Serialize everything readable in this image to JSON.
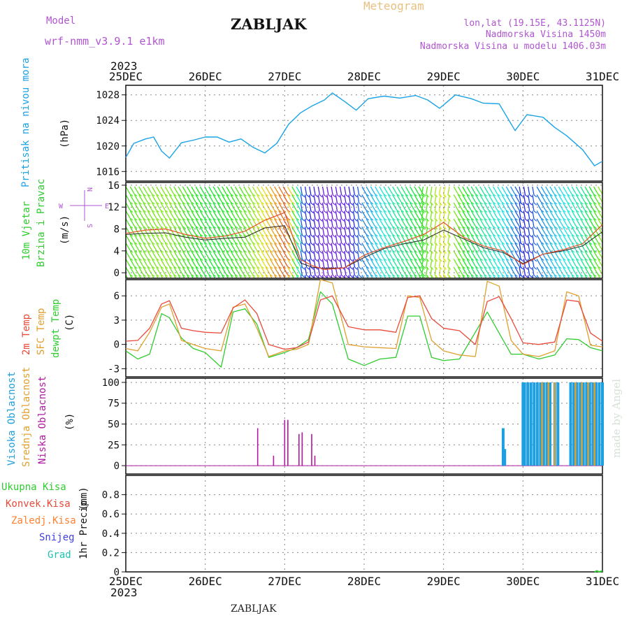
{
  "header": {
    "model_label": "Model",
    "model_name": "wrf-nmm_v3.9.1  e1km",
    "title": "ZABLJAK",
    "meteogram": "Meteogram",
    "lonlat": "lon,lat (19.15E, 43.1125N)",
    "elevation": "Nadmorska Visina 1450m",
    "model_elevation": "Nadmorska Visina u modelu 1406.03m",
    "watermark": "made by Angel",
    "footer_station": "ZABLJAK"
  },
  "colors": {
    "pressure": "#1aa3e6",
    "wind_mean": "#e8502a",
    "wind_gust": "#222222",
    "t2m": "#e84a3a",
    "tsfc": "#e0a030",
    "dewpoint": "#2fcc2f",
    "cloud_high": "#1e9fe0",
    "cloud_mid": "#e0a030",
    "cloud_low": "#b01aa0",
    "purple_text": "#b055d0",
    "orange_text": "#e8c080",
    "ukupna": "#2fcc2f",
    "konvek": "#e84a3a",
    "zaledj": "#ff8030",
    "snijeg": "#4040e0",
    "grad": "#20c0b0"
  },
  "chart_data": [
    {
      "type": "line",
      "x_axis": {
        "year": "2023",
        "days": [
          "25DEC",
          "26DEC",
          "27DEC",
          "28DEC",
          "29DEC",
          "30DEC",
          "31DEC"
        ],
        "unit": "day offset"
      },
      "ylabel": "Pritisak na nivou mora",
      "unit_label": "(hPa)",
      "ylim": [
        1014.5,
        1029.5
      ],
      "yticks": [
        "1016",
        "1020",
        "1024",
        "1028"
      ],
      "series": [
        {
          "color": "#1aa3e6",
          "x": [
            0,
            0.1,
            0.25,
            0.35,
            0.45,
            0.55,
            0.7,
            0.85,
            1.0,
            1.15,
            1.3,
            1.45,
            1.6,
            1.75,
            1.9,
            2.05,
            2.2,
            2.35,
            2.5,
            2.6,
            2.75,
            2.9,
            3.05,
            3.25,
            3.45,
            3.65,
            3.8,
            3.95,
            4.15,
            4.35,
            4.5,
            4.7,
            4.9,
            5.05,
            5.25,
            5.4,
            5.55,
            5.75,
            5.9,
            6.0
          ],
          "y": [
            1018.2,
            1020.4,
            1021.1,
            1021.4,
            1019.2,
            1018.1,
            1020.5,
            1020.9,
            1021.4,
            1021.4,
            1020.6,
            1021.1,
            1019.8,
            1018.9,
            1020.4,
            1023.4,
            1025.2,
            1026.3,
            1027.2,
            1028.3,
            1027.0,
            1025.6,
            1027.4,
            1027.8,
            1027.5,
            1027.9,
            1027.2,
            1025.9,
            1028.0,
            1027.4,
            1026.7,
            1026.6,
            1022.4,
            1024.9,
            1024.5,
            1022.9,
            1021.6,
            1019.4,
            1016.9,
            1017.6
          ]
        }
      ]
    },
    {
      "type": "line",
      "ylabel": "10m Vjetar Brzina i Pravac",
      "unit_label": "(m/s)",
      "ylim": [
        -1,
        16.5
      ],
      "yticks": [
        "0",
        "4",
        "8",
        "12",
        "16"
      ],
      "compass": [
        "N",
        "E",
        "S",
        "W"
      ],
      "series": [
        {
          "name": "mean",
          "x": [
            0,
            0.25,
            0.5,
            0.75,
            1.0,
            1.25,
            1.5,
            1.75,
            2.0,
            2.2,
            2.35,
            2.5,
            2.75,
            3.0,
            3.25,
            3.5,
            3.75,
            4.0,
            4.25,
            4.5,
            4.75,
            5.0,
            5.25,
            5.5,
            5.75,
            6.0
          ],
          "y": [
            7.2,
            7.8,
            8.0,
            7.0,
            6.3,
            6.7,
            7.6,
            9.6,
            11.0,
            2.4,
            1.3,
            0.6,
            0.9,
            3.2,
            4.6,
            5.7,
            7.0,
            9.2,
            6.5,
            4.9,
            4.0,
            1.5,
            3.4,
            4.2,
            5.3,
            8.8
          ]
        },
        {
          "name": "gust",
          "x": [
            0,
            0.25,
            0.5,
            0.75,
            1.0,
            1.25,
            1.5,
            1.75,
            2.0,
            2.2,
            2.35,
            2.5,
            2.75,
            3.0,
            3.25,
            3.5,
            3.75,
            4.0,
            4.25,
            4.5,
            4.75,
            5.0,
            5.25,
            5.5,
            5.75,
            6.0
          ],
          "y": [
            7.0,
            7.2,
            7.3,
            6.5,
            6.0,
            6.3,
            6.5,
            8.2,
            8.6,
            1.8,
            1.0,
            0.8,
            0.9,
            2.8,
            4.4,
            5.3,
            6.0,
            7.8,
            6.2,
            4.6,
            3.7,
            1.7,
            3.4,
            4.0,
            4.9,
            7.5
          ]
        }
      ]
    },
    {
      "type": "line",
      "ylabel": "2m Temp / SFC Temp / dewpt Temp",
      "legend": [
        "2m Temp",
        "SFC Temp",
        "dewpt Temp"
      ],
      "unit_label": "(C)",
      "ylim": [
        -4,
        8
      ],
      "yticks": [
        "-3",
        "0",
        "3",
        "6"
      ],
      "series": [
        {
          "name": "2m Temp",
          "color": "#e84a3a",
          "x": [
            0,
            0.15,
            0.3,
            0.45,
            0.55,
            0.7,
            0.85,
            1.0,
            1.2,
            1.35,
            1.5,
            1.65,
            1.8,
            2.0,
            2.15,
            2.3,
            2.45,
            2.6,
            2.8,
            3.0,
            3.2,
            3.4,
            3.55,
            3.7,
            3.85,
            4.0,
            4.2,
            4.4,
            4.55,
            4.7,
            4.85,
            5.0,
            5.2,
            5.4,
            5.55,
            5.7,
            5.85,
            6.0
          ],
          "y": [
            0.4,
            0.5,
            2.0,
            5.0,
            5.4,
            2.0,
            1.7,
            1.5,
            1.4,
            4.5,
            5.5,
            3.8,
            0.0,
            -0.6,
            -0.4,
            0.3,
            5.5,
            6.0,
            2.2,
            1.8,
            1.8,
            1.5,
            5.8,
            6.0,
            3.2,
            2.0,
            1.7,
            0.0,
            5.3,
            5.9,
            3.2,
            0.2,
            0.0,
            0.3,
            5.5,
            5.3,
            1.4,
            0.4
          ]
        },
        {
          "name": "SFC Temp",
          "color": "#e0a030",
          "x": [
            0,
            0.15,
            0.3,
            0.45,
            0.55,
            0.7,
            0.85,
            1.0,
            1.2,
            1.35,
            1.5,
            1.65,
            1.8,
            2.0,
            2.15,
            2.3,
            2.45,
            2.6,
            2.8,
            3.0,
            3.2,
            3.4,
            3.55,
            3.7,
            3.85,
            4.0,
            4.2,
            4.4,
            4.55,
            4.7,
            4.85,
            5.0,
            5.2,
            5.4,
            5.55,
            5.7,
            5.85,
            6.0
          ],
          "y": [
            -0.5,
            -0.8,
            1.5,
            4.6,
            5.0,
            0.5,
            0.0,
            -0.5,
            -0.8,
            4.6,
            5.0,
            2.0,
            -1.5,
            -0.8,
            -0.6,
            0.0,
            8.0,
            7.6,
            0.0,
            -0.3,
            -0.4,
            -0.5,
            6.0,
            5.8,
            0.5,
            -0.8,
            -1.3,
            -1.5,
            7.8,
            7.2,
            0.5,
            -1.2,
            -1.5,
            -0.8,
            6.5,
            6.0,
            -0.1,
            -0.3
          ]
        },
        {
          "name": "dewpt Temp",
          "color": "#2fcc2f",
          "x": [
            0,
            0.15,
            0.3,
            0.45,
            0.55,
            0.7,
            0.85,
            1.0,
            1.2,
            1.35,
            1.5,
            1.65,
            1.8,
            2.0,
            2.15,
            2.3,
            2.45,
            2.6,
            2.8,
            3.0,
            3.2,
            3.4,
            3.55,
            3.7,
            3.85,
            4.0,
            4.2,
            4.4,
            4.55,
            4.7,
            4.85,
            5.0,
            5.2,
            5.4,
            5.55,
            5.7,
            5.85,
            6.0
          ],
          "y": [
            -0.8,
            -1.8,
            -1.2,
            3.8,
            3.3,
            0.8,
            -0.5,
            -1.0,
            -2.8,
            4.0,
            4.4,
            2.5,
            -1.6,
            -1.0,
            -0.4,
            0.6,
            6.5,
            5.0,
            -1.8,
            -2.6,
            -1.8,
            -1.6,
            3.5,
            3.5,
            -1.6,
            -2.0,
            -1.8,
            1.5,
            4.0,
            1.4,
            -1.2,
            -1.2,
            -1.8,
            -1.3,
            0.7,
            0.6,
            -0.4,
            -0.8
          ]
        }
      ]
    },
    {
      "type": "bar",
      "ylabel": "Visoka Oblacnost / Srednja Oblacnost / Niska Oblacnost",
      "legend": [
        "Visoka Oblacnost",
        "Srednja Oblacnost",
        "Niska Oblacnost"
      ],
      "unit_label": "(%)",
      "ylim": [
        -10,
        105
      ],
      "yticks": [
        "0",
        "25",
        "50",
        "75",
        "100"
      ],
      "series": [
        {
          "name": "Visoka Oblacnost",
          "color": "#1e9fe0",
          "x": [
            4.75,
            4.77,
            5.0,
            5.02,
            5.06,
            5.1,
            5.14,
            5.18,
            5.22,
            5.26,
            5.3,
            5.34,
            5.4,
            5.44,
            5.88,
            5.92,
            5.96,
            6.0,
            5.6,
            5.64,
            5.68,
            5.72,
            5.76,
            5.8,
            5.84
          ],
          "y": [
            45,
            20,
            100,
            100,
            100,
            100,
            100,
            100,
            100,
            100,
            100,
            100,
            100,
            100,
            100,
            100,
            100,
            100,
            100,
            100,
            100,
            100,
            100,
            100,
            100
          ]
        },
        {
          "name": "Srednja Oblacnost",
          "color": "#e0a030",
          "x": [
            5.24,
            5.32,
            5.4,
            5.66,
            5.74,
            5.82,
            5.9
          ],
          "y": [
            100,
            100,
            100,
            100,
            100,
            100,
            100
          ]
        },
        {
          "name": "Niska Oblacnost",
          "color": "#b01aa0",
          "x": [
            1.66,
            1.86,
            2.0,
            2.04,
            2.18,
            2.22,
            2.34,
            2.38
          ],
          "y": [
            45,
            12,
            55,
            55,
            38,
            40,
            38,
            12
          ]
        }
      ]
    },
    {
      "type": "line",
      "ylabel": "1hr Precip",
      "unit_label": "(mm)",
      "legend": [
        "Ukupna Kisa",
        "Konvek.Kisa",
        "Zaledj.Kisa",
        "Snijeg",
        "Grad"
      ],
      "ylim": [
        0,
        1.0
      ],
      "yticks": [
        "0",
        "0.2",
        "0.4",
        "0.6",
        "0.8"
      ],
      "series": [
        {
          "name": "Ukupna Kisa",
          "color": "#2fcc2f",
          "x": [
            5.9,
            5.93,
            5.96,
            6.0
          ],
          "y": [
            0.0,
            0.01,
            0.0,
            0.01
          ]
        }
      ]
    }
  ]
}
